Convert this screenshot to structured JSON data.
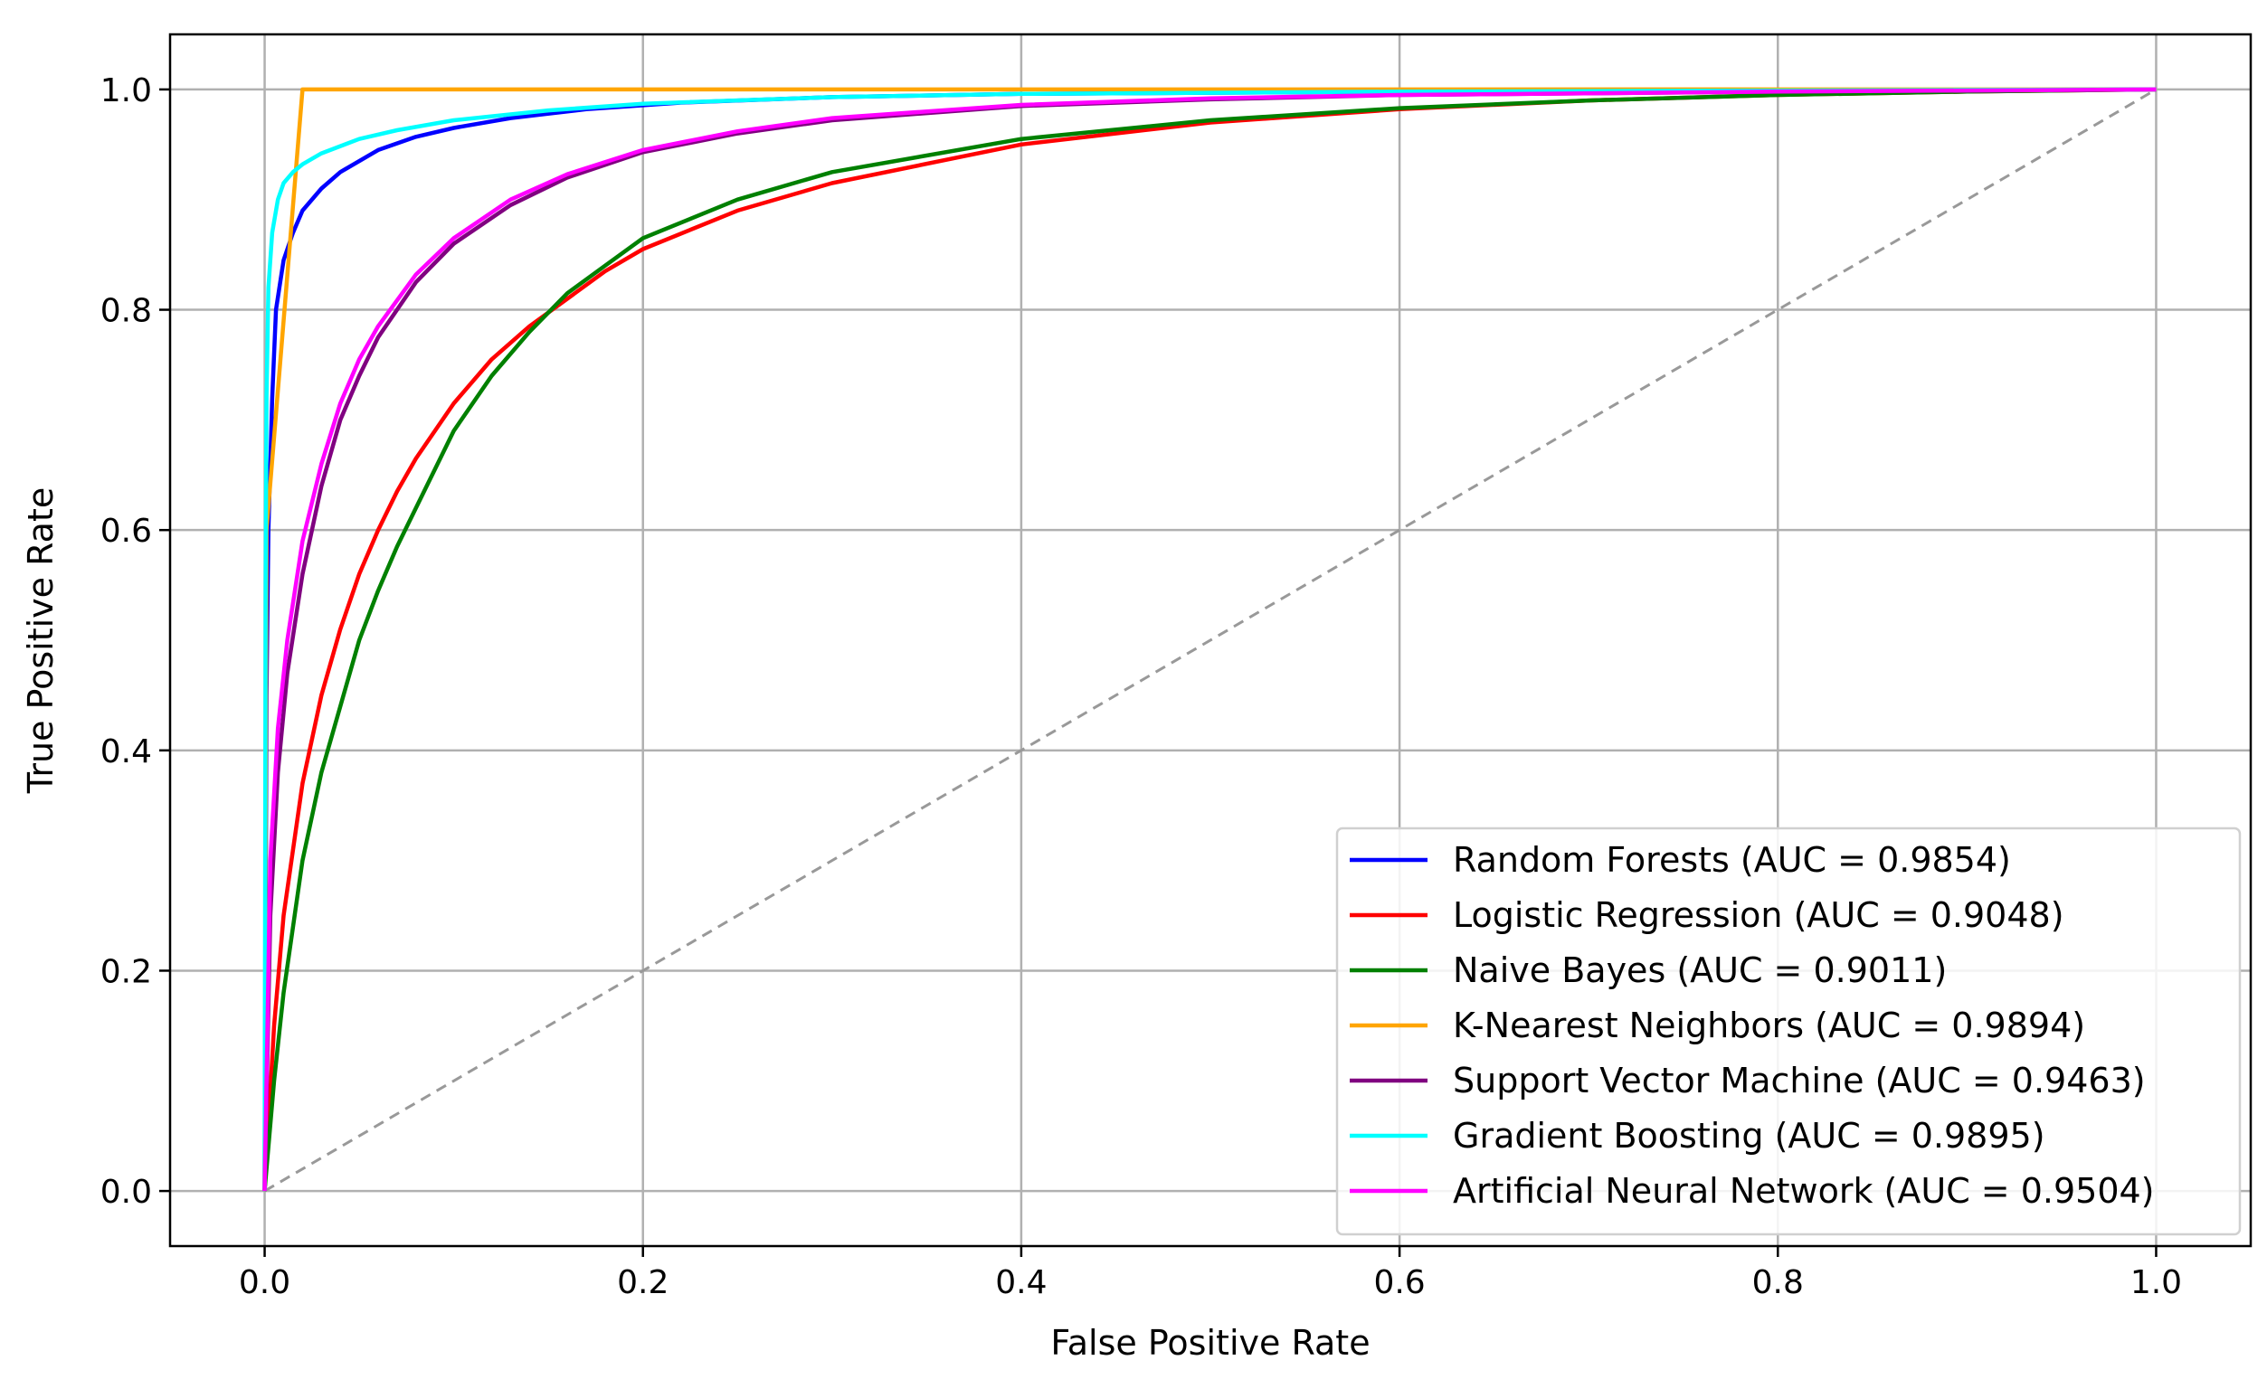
{
  "chart_data": {
    "type": "line",
    "xlabel": "False Positive Rate",
    "ylabel": "True Positive Rate",
    "xlim": [
      -0.05,
      1.05
    ],
    "ylim": [
      -0.05,
      1.05
    ],
    "x_ticks": [
      "0.0",
      "0.2",
      "0.4",
      "0.6",
      "0.8",
      "1.0"
    ],
    "y_ticks": [
      "0.0",
      "0.2",
      "0.4",
      "0.6",
      "0.8",
      "1.0"
    ],
    "grid": true,
    "legend_position": "lower-right",
    "baseline": {
      "x": [
        0,
        1
      ],
      "y": [
        0,
        1
      ],
      "color": "#999999",
      "style": "dashed"
    },
    "series": [
      {
        "name": "Random Forests (AUC = 0.9854)",
        "color": "#0000ff",
        "x": [
          0,
          0.001,
          0.002,
          0.004,
          0.006,
          0.01,
          0.015,
          0.02,
          0.03,
          0.04,
          0.06,
          0.08,
          0.1,
          0.13,
          0.17,
          0.22,
          0.3,
          0.4,
          0.6,
          0.8,
          1.0
        ],
        "y": [
          0,
          0.45,
          0.6,
          0.72,
          0.8,
          0.845,
          0.87,
          0.89,
          0.91,
          0.925,
          0.945,
          0.957,
          0.965,
          0.974,
          0.982,
          0.988,
          0.993,
          0.996,
          0.998,
          0.999,
          1.0
        ]
      },
      {
        "name": "Logistic Regression (AUC = 0.9048)",
        "color": "#ff0000",
        "x": [
          0,
          0.005,
          0.01,
          0.02,
          0.03,
          0.04,
          0.05,
          0.06,
          0.07,
          0.08,
          0.1,
          0.12,
          0.14,
          0.16,
          0.18,
          0.2,
          0.25,
          0.3,
          0.4,
          0.5,
          0.6,
          0.7,
          0.8,
          0.9,
          1.0
        ],
        "y": [
          0,
          0.15,
          0.25,
          0.37,
          0.45,
          0.51,
          0.56,
          0.6,
          0.635,
          0.665,
          0.715,
          0.755,
          0.785,
          0.81,
          0.835,
          0.855,
          0.89,
          0.915,
          0.95,
          0.97,
          0.982,
          0.99,
          0.995,
          0.998,
          1.0
        ]
      },
      {
        "name": "Naive Bayes (AUC = 0.9011)",
        "color": "#008000",
        "x": [
          0,
          0.005,
          0.01,
          0.02,
          0.03,
          0.04,
          0.05,
          0.06,
          0.07,
          0.08,
          0.1,
          0.12,
          0.14,
          0.16,
          0.18,
          0.2,
          0.25,
          0.3,
          0.4,
          0.5,
          0.6,
          0.7,
          0.8,
          0.9,
          1.0
        ],
        "y": [
          0,
          0.1,
          0.18,
          0.3,
          0.38,
          0.44,
          0.5,
          0.545,
          0.585,
          0.62,
          0.69,
          0.74,
          0.78,
          0.815,
          0.84,
          0.865,
          0.9,
          0.925,
          0.955,
          0.972,
          0.983,
          0.99,
          0.995,
          0.998,
          1.0
        ]
      },
      {
        "name": "K-Nearest Neighbors (AUC = 0.9894)",
        "color": "#ffa500",
        "x": [
          0,
          0.001,
          0.02,
          0.05,
          0.2,
          0.5,
          1.0
        ],
        "y": [
          0,
          0.6,
          1.0,
          1.0,
          1.0,
          1.0,
          1.0
        ]
      },
      {
        "name": "Support Vector Machine (AUC = 0.9463)",
        "color": "#800080",
        "x": [
          0,
          0.003,
          0.007,
          0.012,
          0.02,
          0.03,
          0.04,
          0.05,
          0.06,
          0.08,
          0.1,
          0.13,
          0.16,
          0.2,
          0.25,
          0.3,
          0.4,
          0.5,
          0.6,
          0.8,
          1.0
        ],
        "y": [
          0,
          0.25,
          0.38,
          0.47,
          0.56,
          0.64,
          0.7,
          0.74,
          0.775,
          0.825,
          0.86,
          0.895,
          0.92,
          0.943,
          0.96,
          0.972,
          0.985,
          0.991,
          0.995,
          0.998,
          1.0
        ]
      },
      {
        "name": "Gradient Boosting (AUC = 0.9895)",
        "color": "#00ffff",
        "x": [
          0,
          0.0005,
          0.001,
          0.002,
          0.004,
          0.007,
          0.01,
          0.015,
          0.02,
          0.03,
          0.05,
          0.07,
          0.1,
          0.15,
          0.2,
          0.3,
          0.4,
          0.6,
          0.8,
          1.0
        ],
        "y": [
          0,
          0.55,
          0.72,
          0.82,
          0.87,
          0.9,
          0.915,
          0.925,
          0.932,
          0.942,
          0.955,
          0.963,
          0.972,
          0.981,
          0.987,
          0.993,
          0.996,
          0.998,
          0.999,
          1.0
        ]
      },
      {
        "name": "Artificial Neural Network (AUC = 0.9504)",
        "color": "#ff00ff",
        "x": [
          0,
          0.003,
          0.007,
          0.012,
          0.02,
          0.03,
          0.04,
          0.05,
          0.06,
          0.08,
          0.1,
          0.13,
          0.16,
          0.2,
          0.25,
          0.3,
          0.4,
          0.5,
          0.6,
          0.8,
          1.0
        ],
        "y": [
          0,
          0.3,
          0.42,
          0.5,
          0.59,
          0.66,
          0.715,
          0.755,
          0.785,
          0.832,
          0.865,
          0.9,
          0.923,
          0.945,
          0.962,
          0.974,
          0.986,
          0.992,
          0.995,
          0.998,
          1.0
        ]
      }
    ]
  }
}
